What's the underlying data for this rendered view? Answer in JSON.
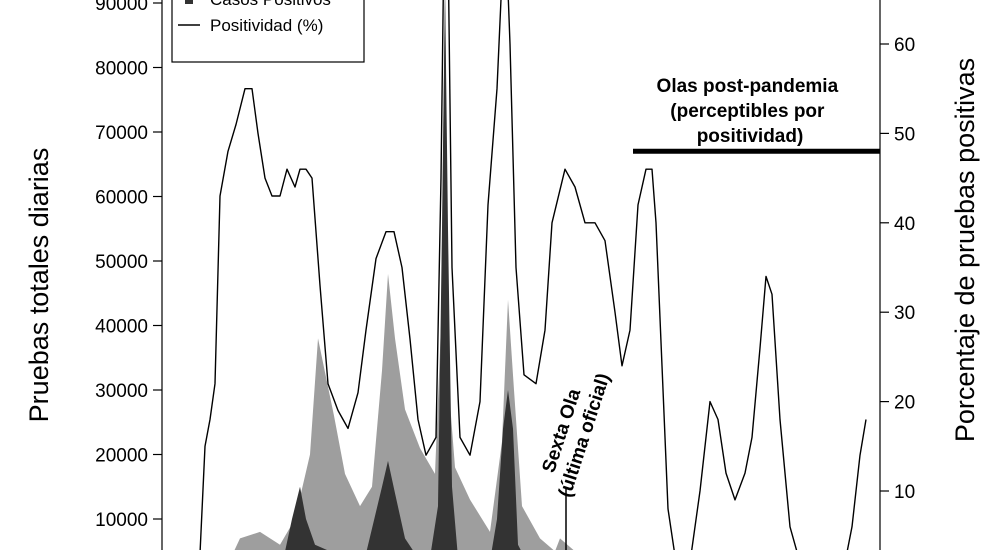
{
  "chart_data": {
    "type": "area",
    "xlabel": "",
    "y_left_label": "Pruebas totales diarias",
    "y_right_label": "Porcentaje de pruebas positivas",
    "y_left_ticks": [
      10000,
      20000,
      30000,
      40000,
      50000,
      60000,
      70000,
      80000,
      90000
    ],
    "y_right_ticks": [
      10,
      20,
      30,
      40,
      50,
      60
    ],
    "y_left_lim": [
      3000,
      94000
    ],
    "y_right_lim": [
      2,
      70
    ],
    "x_range": [
      0,
      1000
    ],
    "legend": [
      {
        "label": "Casos Positivos",
        "marker": "square"
      },
      {
        "label": "Positividad (%)",
        "marker": "line"
      }
    ],
    "colors": {
      "total": "#9e9e9e",
      "positive": "#333333",
      "line": "#000000"
    },
    "series": [
      {
        "kind": "area-left",
        "role": "total",
        "points": [
          [
            200,
            3000
          ],
          [
            228,
            3000
          ],
          [
            240,
            7000
          ],
          [
            260,
            8000
          ],
          [
            280,
            6000
          ],
          [
            295,
            10000
          ],
          [
            310,
            20000
          ],
          [
            318,
            38000
          ],
          [
            326,
            32000
          ],
          [
            334,
            26000
          ],
          [
            345,
            17000
          ],
          [
            360,
            12000
          ],
          [
            372,
            15000
          ],
          [
            382,
            33000
          ],
          [
            388,
            48000
          ],
          [
            395,
            38000
          ],
          [
            405,
            27000
          ],
          [
            420,
            21000
          ],
          [
            435,
            17000
          ],
          [
            441,
            40000
          ],
          [
            445,
            92000
          ],
          [
            449,
            30000
          ],
          [
            455,
            18000
          ],
          [
            470,
            13000
          ],
          [
            490,
            8000
          ],
          [
            502,
            22000
          ],
          [
            508,
            44000
          ],
          [
            514,
            30000
          ],
          [
            522,
            12000
          ],
          [
            540,
            7000
          ],
          [
            555,
            5000
          ],
          [
            560,
            7000
          ],
          [
            575,
            5000
          ],
          [
            592,
            4000
          ],
          [
            600,
            3000
          ],
          [
            620,
            3000
          ]
        ]
      },
      {
        "kind": "area-left",
        "role": "positive",
        "points": [
          [
            240,
            3000
          ],
          [
            252,
            5000
          ],
          [
            262,
            3500
          ],
          [
            275,
            4000
          ],
          [
            283,
            3500
          ],
          [
            292,
            10000
          ],
          [
            300,
            15000
          ],
          [
            306,
            10000
          ],
          [
            315,
            6000
          ],
          [
            330,
            5000
          ],
          [
            345,
            3500
          ],
          [
            365,
            4000
          ],
          [
            382,
            15000
          ],
          [
            388,
            19000
          ],
          [
            395,
            14000
          ],
          [
            405,
            7000
          ],
          [
            420,
            3500
          ],
          [
            430,
            4000
          ],
          [
            438,
            12000
          ],
          [
            442,
            55000
          ],
          [
            445,
            93000
          ],
          [
            448,
            55000
          ],
          [
            452,
            15000
          ],
          [
            458,
            4000
          ],
          [
            470,
            3000
          ],
          [
            490,
            3500
          ],
          [
            497,
            10000
          ],
          [
            503,
            24000
          ],
          [
            508,
            30000
          ],
          [
            513,
            24000
          ],
          [
            518,
            6000
          ],
          [
            528,
            3000
          ],
          [
            560,
            3000
          ]
        ]
      },
      {
        "kind": "line-right",
        "role": "line",
        "points": [
          [
            200,
            3
          ],
          [
            205,
            15
          ],
          [
            210,
            18
          ],
          [
            215,
            22
          ],
          [
            220,
            43
          ],
          [
            228,
            48
          ],
          [
            236,
            51
          ],
          [
            245,
            55
          ],
          [
            252,
            55
          ],
          [
            258,
            50
          ],
          [
            265,
            45
          ],
          [
            272,
            43
          ],
          [
            280,
            43
          ],
          [
            287,
            46
          ],
          [
            295,
            44
          ],
          [
            300,
            46
          ],
          [
            306,
            46
          ],
          [
            312,
            45
          ],
          [
            320,
            33
          ],
          [
            328,
            22
          ],
          [
            338,
            19
          ],
          [
            348,
            17
          ],
          [
            358,
            21
          ],
          [
            366,
            28
          ],
          [
            376,
            36
          ],
          [
            386,
            39
          ],
          [
            394,
            39
          ],
          [
            402,
            35
          ],
          [
            410,
            27
          ],
          [
            418,
            18
          ],
          [
            426,
            14
          ],
          [
            436,
            16
          ],
          [
            441,
            45
          ],
          [
            446,
            90
          ],
          [
            452,
            35
          ],
          [
            460,
            16
          ],
          [
            470,
            14
          ],
          [
            480,
            20
          ],
          [
            488,
            42
          ],
          [
            497,
            55
          ],
          [
            505,
            75
          ],
          [
            510,
            60
          ],
          [
            516,
            35
          ],
          [
            524,
            23
          ],
          [
            536,
            22
          ],
          [
            545,
            28
          ],
          [
            552,
            40
          ],
          [
            565,
            46
          ],
          [
            575,
            44
          ],
          [
            585,
            40
          ],
          [
            595,
            40
          ],
          [
            605,
            38
          ],
          [
            615,
            30
          ],
          [
            622,
            24
          ],
          [
            630,
            28
          ],
          [
            638,
            42
          ],
          [
            646,
            46
          ],
          [
            652,
            46
          ],
          [
            656,
            40
          ],
          [
            662,
            24
          ],
          [
            668,
            8
          ],
          [
            676,
            2
          ],
          [
            690,
            2
          ],
          [
            700,
            10
          ],
          [
            710,
            20
          ],
          [
            718,
            18
          ],
          [
            726,
            12
          ],
          [
            735,
            9
          ],
          [
            745,
            12
          ],
          [
            752,
            16
          ],
          [
            760,
            26
          ],
          [
            766,
            34
          ],
          [
            772,
            32
          ],
          [
            780,
            18
          ],
          [
            790,
            6
          ],
          [
            800,
            2
          ],
          [
            820,
            2
          ],
          [
            845,
            2
          ],
          [
            852,
            6
          ],
          [
            860,
            14
          ],
          [
            866,
            18
          ]
        ]
      }
    ],
    "annotations": {
      "sexta_ola": {
        "line1": "Sexta Ola",
        "line2": "(última oficial)",
        "x": 566
      },
      "post_pandemia": {
        "lines": [
          "Olas post-pandemia",
          "(perceptibles por",
          "positividad)"
        ],
        "x_start": 633,
        "x_end": 880,
        "y_right": 48
      }
    }
  }
}
